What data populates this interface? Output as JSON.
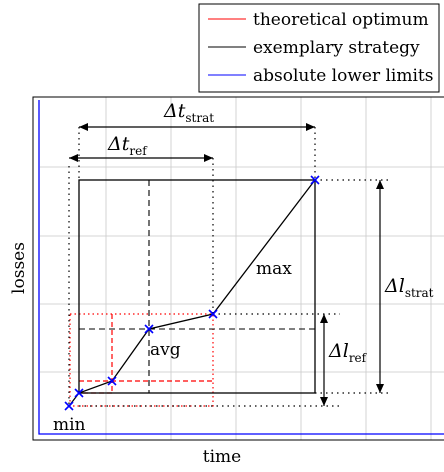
{
  "legend": {
    "items": [
      {
        "label": "theoretical optimum",
        "color": "#ff0000"
      },
      {
        "label": "exemplary strategy",
        "color": "#000000"
      },
      {
        "label": "absolute lower limits",
        "color": "#0000ff"
      }
    ]
  },
  "axes": {
    "xlabel": "time",
    "ylabel": "losses"
  },
  "annotations": {
    "delta_t_strat": {
      "symbol": "Δt",
      "sub": "strat"
    },
    "delta_t_ref": {
      "symbol": "Δt",
      "sub": "ref"
    },
    "delta_l_strat": {
      "symbol": "Δl",
      "sub": "strat"
    },
    "delta_l_ref": {
      "symbol": "Δl",
      "sub": "ref"
    },
    "max_label": "max",
    "avg_label": "avg",
    "min_label": "min"
  },
  "colors": {
    "optimum": "#ff0000",
    "strategy": "#000000",
    "limits": "#0000ff",
    "grid": "#c8c8c8"
  }
}
